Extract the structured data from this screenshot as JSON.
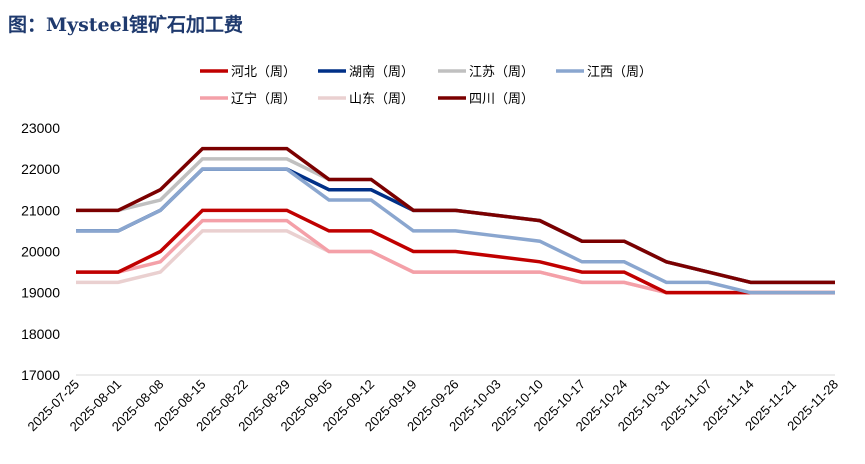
{
  "title": "图：Mysteel锂矿石加工费",
  "chart_data": {
    "type": "line",
    "title": "图：Mysteel锂矿石加工费",
    "xlabel": "",
    "ylabel": "",
    "ylim": [
      17000,
      23000
    ],
    "yticks": [
      "17000",
      "18000",
      "19000",
      "20000",
      "21000",
      "22000",
      "23000"
    ],
    "grid": false,
    "legend_placement": "top",
    "x": [
      "2025-07-25",
      "2025-08-01",
      "2025-08-08",
      "2025-08-15",
      "2025-08-22",
      "2025-08-29",
      "2025-09-05",
      "2025-09-12",
      "2025-09-19",
      "2025-09-26",
      "2025-10-03",
      "2025-10-10",
      "2025-10-17",
      "2025-10-24",
      "2025-10-31",
      "2025-11-07",
      "2025-11-14",
      "2025-11-21",
      "2025-11-28"
    ],
    "series": [
      {
        "name": "山东（周）",
        "color": "#ead0d0",
        "values": [
          19250,
          19250,
          19500,
          20500,
          20500,
          20500,
          20000,
          20000,
          19500,
          19500,
          19500,
          19500,
          19250,
          19250,
          19000,
          19000,
          19000,
          19000,
          19000
        ]
      },
      {
        "name": "辽宁（周）",
        "color": "#f4a0a8",
        "values": [
          19500,
          19500,
          19750,
          20750,
          20750,
          20750,
          20000,
          20000,
          19500,
          19500,
          19500,
          19500,
          19250,
          19250,
          19000,
          19000,
          19000,
          19000,
          19000
        ]
      },
      {
        "name": "河北（周）",
        "color": "#c00000",
        "values": [
          19500,
          19500,
          20000,
          21000,
          21000,
          21000,
          20500,
          20500,
          20000,
          20000,
          19875,
          19750,
          19500,
          19500,
          19000,
          19000,
          19000,
          19000,
          19000
        ]
      },
      {
        "name": "湖南（周）",
        "color": "#003087",
        "values": [
          20500,
          20500,
          21000,
          22000,
          22000,
          22000,
          21500,
          21500,
          21000,
          21000,
          20875,
          20750,
          20250,
          20250,
          19750,
          19500,
          19250,
          19250,
          19250
        ]
      },
      {
        "name": "江西（周）",
        "color": "#8aa6cf",
        "values": [
          20500,
          20500,
          21000,
          22000,
          22000,
          22000,
          21250,
          21250,
          20500,
          20500,
          20375,
          20250,
          19750,
          19750,
          19250,
          19250,
          19000,
          19000,
          19000
        ]
      },
      {
        "name": "江苏（周）",
        "color": "#c0c0c0",
        "values": [
          21000,
          21000,
          21250,
          22250,
          22250,
          22250,
          21750,
          21750,
          21000,
          21000,
          20875,
          20750,
          20250,
          20250,
          19750,
          19500,
          19250,
          19250,
          19250
        ]
      },
      {
        "name": "四川（周）",
        "color": "#7b0000",
        "values": [
          21000,
          21000,
          21500,
          22500,
          22500,
          22500,
          21750,
          21750,
          21000,
          21000,
          20875,
          20750,
          20250,
          20250,
          19750,
          19500,
          19250,
          19250,
          19250
        ]
      }
    ],
    "legend_order": [
      "河北（周）",
      "湖南（周）",
      "江苏（周）",
      "江西（周）",
      "辽宁（周）",
      "山东（周）",
      "四川（周）"
    ]
  }
}
